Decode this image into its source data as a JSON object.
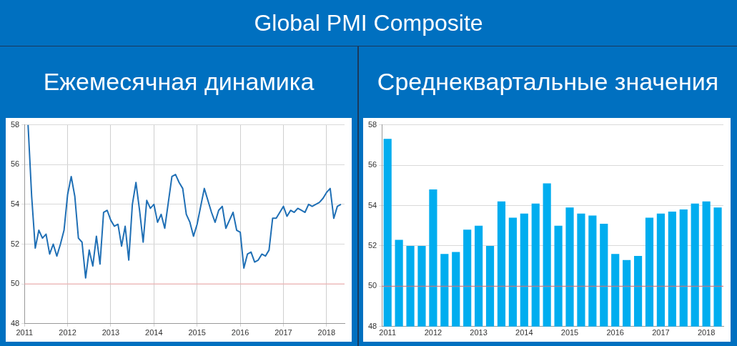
{
  "chart_data": [
    {
      "type": "line",
      "title": "Global PMI Composite",
      "subtitle": "Ежемесячная динамика",
      "x": [
        "2011-02",
        "2011-03",
        "2011-04",
        "2011-05",
        "2011-06",
        "2011-07",
        "2011-08",
        "2011-09",
        "2011-10",
        "2011-11",
        "2011-12",
        "2012-01",
        "2012-02",
        "2012-03",
        "2012-04",
        "2012-05",
        "2012-06",
        "2012-07",
        "2012-08",
        "2012-09",
        "2012-10",
        "2012-11",
        "2012-12",
        "2013-01",
        "2013-02",
        "2013-03",
        "2013-04",
        "2013-05",
        "2013-06",
        "2013-07",
        "2013-08",
        "2013-09",
        "2013-10",
        "2013-11",
        "2013-12",
        "2014-01",
        "2014-02",
        "2014-03",
        "2014-04",
        "2014-05",
        "2014-06",
        "2014-07",
        "2014-08",
        "2014-09",
        "2014-10",
        "2014-11",
        "2014-12",
        "2015-01",
        "2015-02",
        "2015-03",
        "2015-04",
        "2015-05",
        "2015-06",
        "2015-07",
        "2015-08",
        "2015-09",
        "2015-10",
        "2015-11",
        "2015-12",
        "2016-01",
        "2016-02",
        "2016-03",
        "2016-04",
        "2016-05",
        "2016-06",
        "2016-07",
        "2016-08",
        "2016-09",
        "2016-10",
        "2016-11",
        "2016-12",
        "2017-01",
        "2017-02",
        "2017-03",
        "2017-04",
        "2017-05",
        "2017-06",
        "2017-07",
        "2017-08",
        "2017-09",
        "2017-10",
        "2017-11",
        "2017-12",
        "2018-01",
        "2018-02",
        "2018-03",
        "2018-04",
        "2018-05"
      ],
      "series": [
        {
          "color": "#1f6fb5",
          "values": [
            58,
            54.4,
            51.8,
            52.7,
            52.3,
            52.5,
            51.5,
            52.0,
            51.4,
            52.0,
            52.7,
            54.5,
            55.4,
            54.4,
            52.3,
            52.1,
            50.3,
            51.7,
            50.9,
            52.4,
            51.0,
            53.6,
            53.7,
            53.2,
            52.9,
            53.0,
            51.9,
            52.9,
            51.2,
            54.0,
            55.1,
            53.7,
            52.1,
            54.2,
            53.8,
            54.0,
            53.1,
            53.5,
            52.8,
            54.1,
            55.4,
            55.5,
            55.1,
            54.8,
            53.5,
            53.1,
            52.4,
            53.0,
            53.9,
            54.8,
            54.2,
            53.6,
            53.1,
            53.7,
            53.9,
            52.8,
            53.2,
            53.6,
            52.7,
            52.6,
            50.8,
            51.5,
            51.6,
            51.1,
            51.2,
            51.5,
            51.4,
            51.7,
            53.3,
            53.3,
            53.6,
            53.9,
            53.4,
            53.7,
            53.6,
            53.8,
            53.7,
            53.6,
            54.0,
            53.9,
            54.0,
            54.1,
            54.3,
            54.6,
            54.8,
            53.3,
            53.9,
            54.0
          ]
        }
      ],
      "xlim": [
        "2011-01",
        "2018-06"
      ],
      "xticks": [
        "2011",
        "2012",
        "2013",
        "2014",
        "2015",
        "2016",
        "2017",
        "2018"
      ],
      "ylim": [
        48,
        58
      ],
      "yticks": [
        48,
        50,
        52,
        54,
        56,
        58
      ],
      "grid": true,
      "ref_lines": [
        {
          "axis": "y",
          "value": 50,
          "color": "#f2a7a7"
        }
      ]
    },
    {
      "type": "bar",
      "subtitle": "Среднеквартальные значения",
      "categories": [
        "2011",
        null,
        null,
        null,
        "2012",
        null,
        null,
        null,
        "2013",
        null,
        null,
        null,
        "2014",
        null,
        null,
        null,
        "2015",
        null,
        null,
        null,
        "2016",
        null,
        null,
        null,
        "2017",
        null,
        null,
        null,
        "2018",
        null
      ],
      "series": [
        {
          "color": "#00adef",
          "values": [
            57.3,
            52.3,
            52.0,
            52.0,
            54.8,
            51.6,
            51.7,
            52.8,
            53.0,
            52.0,
            54.2,
            53.4,
            53.6,
            54.1,
            55.1,
            53.0,
            53.9,
            53.6,
            53.5,
            53.1,
            51.6,
            51.3,
            51.5,
            53.4,
            53.6,
            53.7,
            53.8,
            54.1,
            54.2,
            53.9
          ]
        }
      ],
      "ylim": [
        48,
        58
      ],
      "yticks": [
        48,
        50,
        52,
        54,
        56,
        58
      ],
      "grid": "y",
      "ref_lines": [
        {
          "axis": "y",
          "value": 50,
          "color": "#e07070"
        }
      ]
    }
  ]
}
